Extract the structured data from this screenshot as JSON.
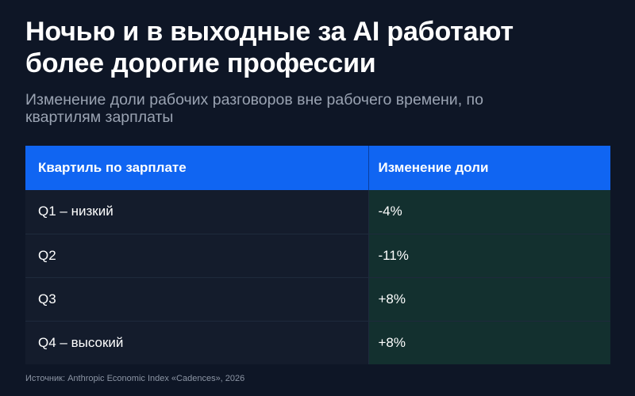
{
  "title_line1": "Ночью и в выходные за AI работают",
  "title_line2": "более дорогие профессии",
  "subtitle_line1": "Изменение доли рабочих разговоров вне рабочего времени, по",
  "subtitle_line2": "квартилям зарплаты",
  "colors": {
    "background": "#0e1626",
    "header": "#1065f2",
    "change_column": "#13302f"
  },
  "chart_data": {
    "type": "table",
    "columns": [
      "Квартиль по зарплате",
      "Изменение доли"
    ],
    "rows": [
      [
        "Q1 – низкий",
        "-4%"
      ],
      [
        "Q2",
        "-11%"
      ],
      [
        "Q3",
        "+8%"
      ],
      [
        "Q4 – высокий",
        "+8%"
      ]
    ]
  },
  "source": "Источник: Anthropic Economic Index «Cadences», 2026"
}
